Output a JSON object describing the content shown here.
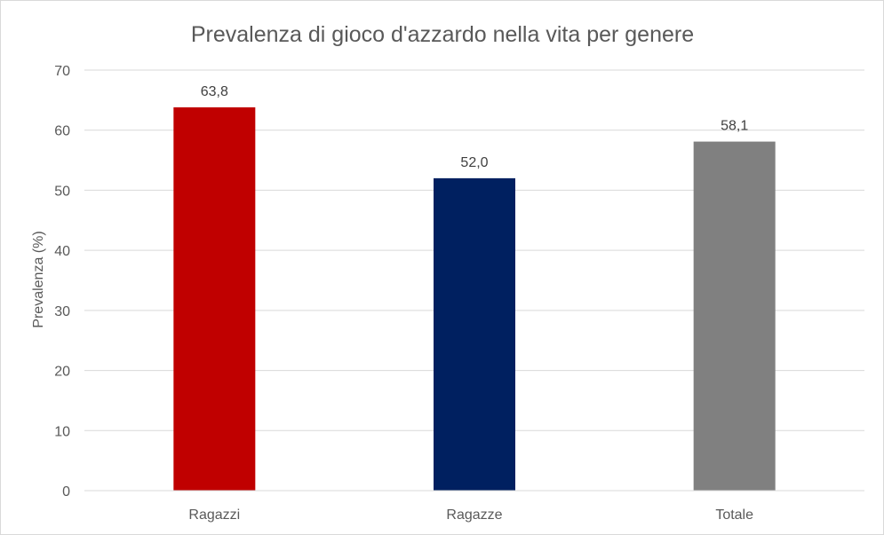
{
  "chart_data": {
    "type": "bar",
    "title": "Prevalenza di gioco d'azzardo nella vita per genere",
    "xlabel": "",
    "ylabel": "Prevalenza (%)",
    "categories": [
      "Ragazzi",
      "Ragazze",
      "Totale"
    ],
    "values": [
      63.8,
      52.0,
      58.1
    ],
    "data_labels": [
      "63,8",
      "52,0",
      "58,1"
    ],
    "colors": [
      "#c00000",
      "#002060",
      "#808080"
    ],
    "ylim": [
      0,
      70
    ],
    "yticks": [
      0,
      10,
      20,
      30,
      40,
      50,
      60,
      70
    ],
    "grid": true,
    "legend": "none"
  }
}
